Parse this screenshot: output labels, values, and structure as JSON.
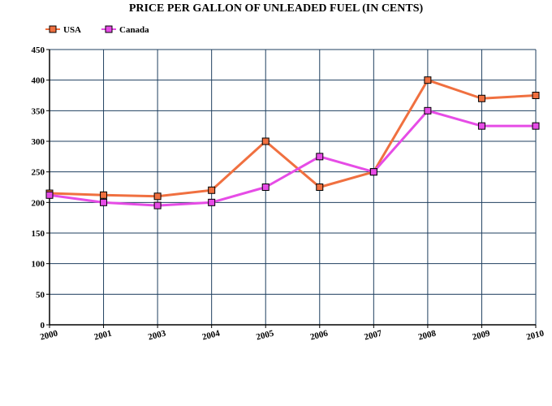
{
  "chart_data": {
    "type": "line",
    "title": "PRICE PER GALLON OF UNLEADED FUEL (IN CENTS)",
    "xlabel": "",
    "ylabel": "",
    "categories": [
      "2000",
      "2001",
      "2003",
      "2004",
      "2005",
      "2006",
      "2007",
      "2008",
      "2009",
      "2010"
    ],
    "yticks": [
      "0",
      "50",
      "100",
      "150",
      "200",
      "250",
      "300",
      "350",
      "400",
      "450"
    ],
    "ylim": [
      0,
      450
    ],
    "grid": true,
    "legend_position": "top-left",
    "series": [
      {
        "name": "USA",
        "color": "#f07040",
        "marker_color": "#f07040",
        "values": [
          215,
          212,
          210,
          220,
          300,
          225,
          250,
          400,
          370,
          375
        ]
      },
      {
        "name": "Canada",
        "color": "#e64ce6",
        "marker_color": "#e64ce6",
        "values": [
          212,
          200,
          195,
          200,
          225,
          275,
          250,
          350,
          325,
          325
        ]
      }
    ],
    "colors": {
      "grid": "#1f3f5f",
      "axis": "#000000"
    }
  }
}
